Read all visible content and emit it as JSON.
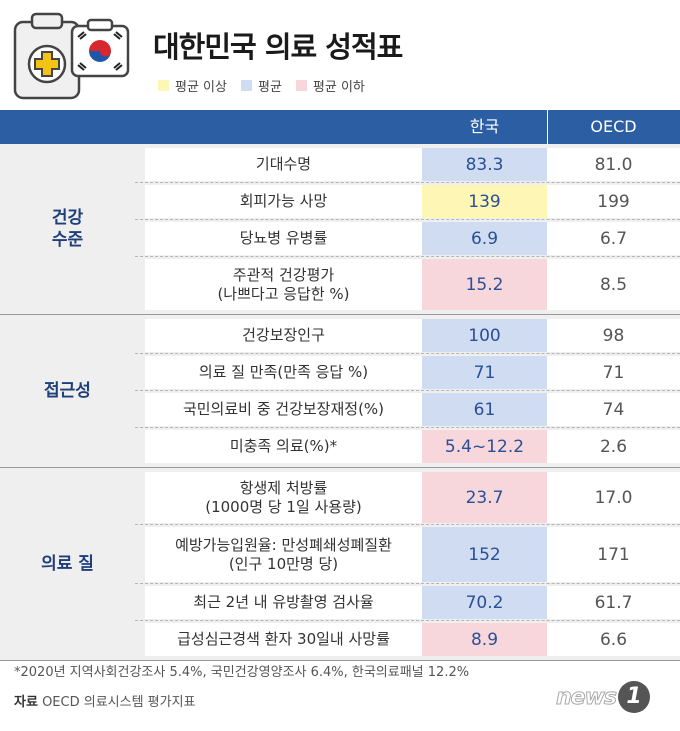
{
  "header": {
    "title": "대한민국 의료 성적표",
    "legend": [
      {
        "label": "평균 이상",
        "color": "#fdf6b5"
      },
      {
        "label": "평균",
        "color": "#cfdcf1"
      },
      {
        "label": "평균 이하",
        "color": "#f7d6dc"
      }
    ]
  },
  "table": {
    "columns": [
      "한국",
      "OECD"
    ],
    "groups": [
      {
        "label": "건강\n수준",
        "rows": [
          {
            "label": "기대수명",
            "korea": "83.3",
            "oecd": "81.0",
            "level": "avg"
          },
          {
            "label": "회피가능 사망",
            "korea": "139",
            "oecd": "199",
            "level": "above"
          },
          {
            "label": "당뇨병 유병률",
            "korea": "6.9",
            "oecd": "6.7",
            "level": "avg"
          },
          {
            "label": "주관적 건강평가\n(나쁘다고 응답한 %)",
            "korea": "15.2",
            "oecd": "8.5",
            "level": "below"
          }
        ]
      },
      {
        "label": "접근성",
        "rows": [
          {
            "label": "건강보장인구",
            "korea": "100",
            "oecd": "98",
            "level": "avg"
          },
          {
            "label": "의료 질 만족(만족 응답 %)",
            "korea": "71",
            "oecd": "71",
            "level": "avg"
          },
          {
            "label": "국민의료비 중 건강보장재정(%)",
            "korea": "61",
            "oecd": "74",
            "level": "avg"
          },
          {
            "label": "미충족 의료(%)*",
            "korea": "5.4~12.2",
            "oecd": "2.6",
            "level": "below"
          }
        ]
      },
      {
        "label": "의료 질",
        "rows": [
          {
            "label": "항생제 처방률\n(1000명 당 1일 사용량)",
            "korea": "23.7",
            "oecd": "17.0",
            "level": "below"
          },
          {
            "label": "예방가능입원율: 만성폐쇄성폐질환\n(인구 10만명 당)",
            "korea": "152",
            "oecd": "171",
            "level": "avg"
          },
          {
            "label": "최근 2년 내 유방촬영 검사율",
            "korea": "70.2",
            "oecd": "61.7",
            "level": "avg"
          },
          {
            "label": "급성심근경색 환자 30일내 사망률",
            "korea": "8.9",
            "oecd": "6.6",
            "level": "below"
          }
        ]
      }
    ]
  },
  "footnote": "*2020년 지역사회건강조사 5.4%, 국민건강영양조사 6.4%, 한국의료패널 12.2%",
  "source": {
    "prefix": "자료",
    "text": "OECD 의료시스템 평가지표"
  },
  "brand": {
    "text": "news",
    "badge": "1"
  },
  "icons": [
    "clipboard-medical-icon",
    "korean-flag-icon"
  ]
}
